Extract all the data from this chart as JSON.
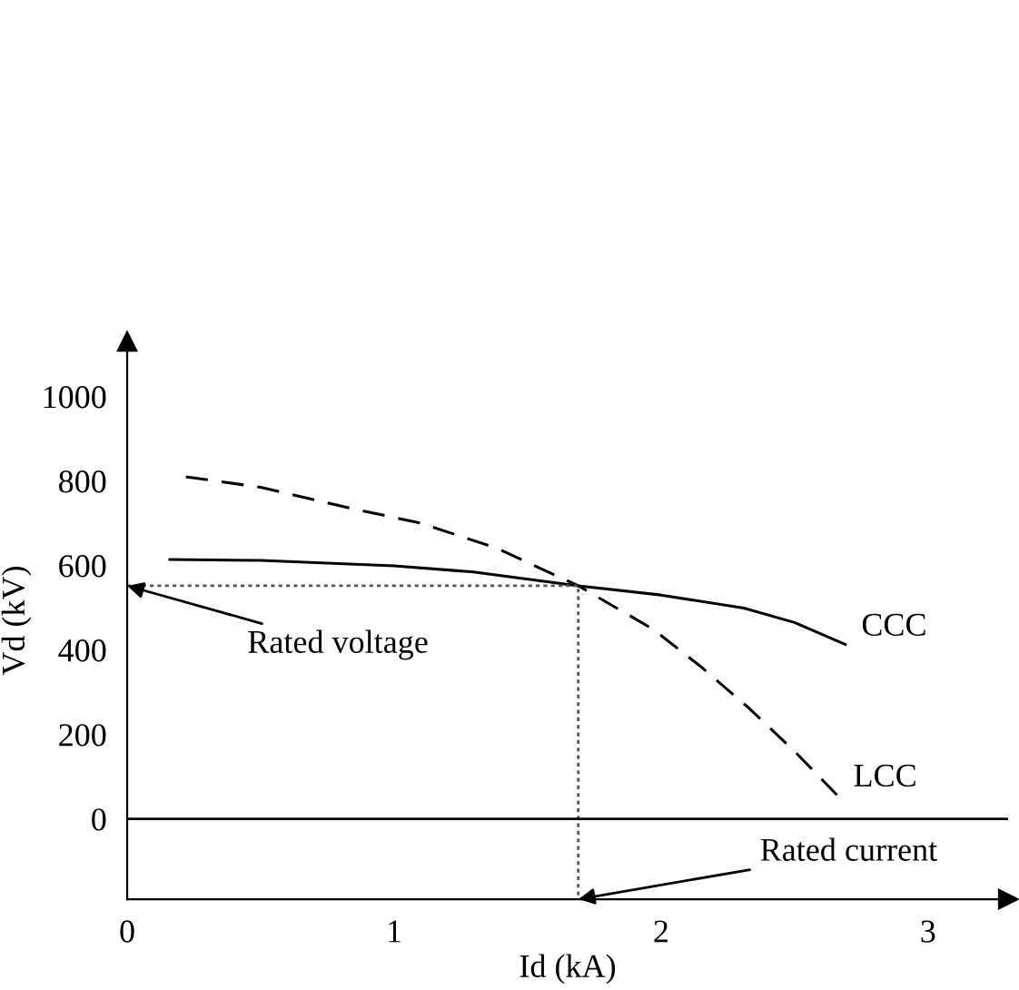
{
  "chart_data": {
    "type": "line",
    "xlabel": "Id (kA)",
    "ylabel": "Vd (kV)",
    "xlim": [
      0,
      3.3
    ],
    "ylim": [
      -190,
      1130
    ],
    "xticks": [
      0,
      1,
      2,
      3
    ],
    "yticks": [
      0,
      200,
      400,
      600,
      800,
      1000
    ],
    "grid": false,
    "legend": false,
    "marker": "none",
    "series": [
      {
        "name": "CCC",
        "color": "#000000",
        "line_style": "solid",
        "x": [
          0.16,
          0.5,
          1.0,
          1.29,
          1.69,
          2.0,
          2.31,
          2.5,
          2.69
        ],
        "values": [
          614,
          612,
          599,
          585,
          552,
          530,
          499,
          465,
          413
        ]
      },
      {
        "name": "LCC",
        "color": "#000000",
        "line_style": "dashed",
        "x": [
          0.22,
          0.5,
          0.84,
          1.1,
          1.38,
          1.69,
          1.97,
          2.15,
          2.33,
          2.5,
          2.66
        ],
        "values": [
          810,
          785,
          735,
          700,
          642,
          552,
          449,
          360,
          262,
          160,
          56
        ]
      },
      {
        "color": "#555555",
        "line_style": "dotted",
        "x": [
          0,
          1.69,
          1.69
        ],
        "values": [
          552,
          552,
          -190
        ]
      }
    ],
    "ref_lines": [
      {
        "axis": "y",
        "value": 0,
        "color": "#000000",
        "line_style": "solid"
      }
    ],
    "annotations": [
      {
        "text": "Rated voltage",
        "x": 0,
        "y": 552
      },
      {
        "text": "Rated current",
        "x": 1.69,
        "y": -190
      }
    ]
  }
}
